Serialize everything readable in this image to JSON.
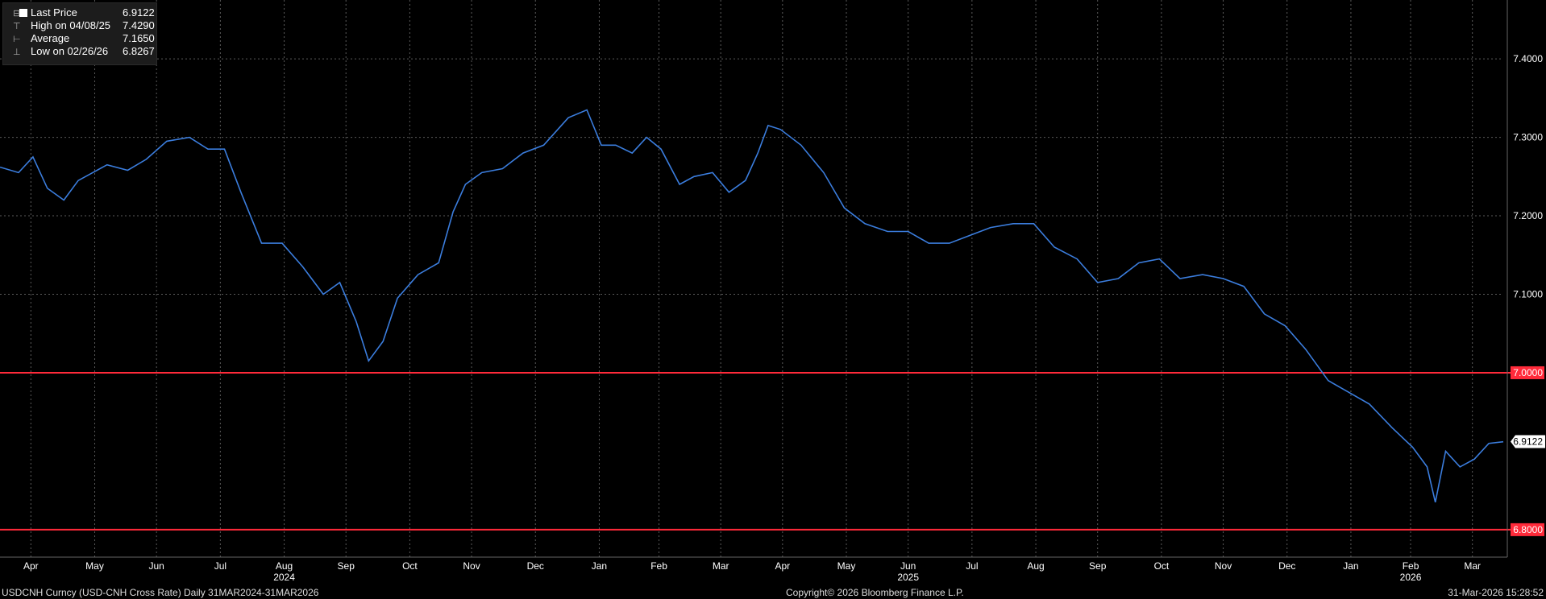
{
  "legend": {
    "items": [
      {
        "label": "Last Price",
        "value": "6.9122"
      },
      {
        "label": "High on 04/08/25",
        "value": "7.4290"
      },
      {
        "label": "Average",
        "value": "7.1650"
      },
      {
        "label": "Low on 02/26/26",
        "value": "6.8267"
      }
    ]
  },
  "footer": {
    "left": "USDCNH Curncy (USD-CNH Cross Rate) Daily 31MAR2024-31MAR2026",
    "center": "Copyright© 2026 Bloomberg Finance L.P.",
    "right": "31-Mar-2026 15:28:52"
  },
  "colors": {
    "background": "#000000",
    "series": "#3b7ddd",
    "reference_line": "#ff2a3a",
    "grid": "#5a5a5a",
    "text": "#ffffff"
  },
  "chart_data": {
    "type": "line",
    "ylim": [
      6.765,
      7.475
    ],
    "y_ticks": [
      6.8,
      7.0,
      7.1,
      7.2,
      7.3,
      7.4
    ],
    "y_tick_labels": [
      "6.8000",
      "7.0000",
      "7.1000",
      "7.2000",
      "7.3000",
      "7.4000"
    ],
    "highlighted_ticks": [
      "6.8000",
      "7.0000"
    ],
    "reference_lines": [
      7.0,
      6.8
    ],
    "last_price_label": "6.9122",
    "last_price": 6.9122,
    "x_range": [
      "2024-03-31",
      "2026-03-31"
    ],
    "month_labels": [
      {
        "date": "2024-04-15",
        "label": "Apr"
      },
      {
        "date": "2024-05-16",
        "label": "May"
      },
      {
        "date": "2024-06-15",
        "label": "Jun"
      },
      {
        "date": "2024-07-16",
        "label": "Jul"
      },
      {
        "date": "2024-08-16",
        "label": "Aug"
      },
      {
        "date": "2024-09-15",
        "label": "Sep"
      },
      {
        "date": "2024-10-16",
        "label": "Oct"
      },
      {
        "date": "2024-11-15",
        "label": "Nov"
      },
      {
        "date": "2024-12-16",
        "label": "Dec"
      },
      {
        "date": "2025-01-16",
        "label": "Jan"
      },
      {
        "date": "2025-02-14",
        "label": "Feb"
      },
      {
        "date": "2025-03-16",
        "label": "Mar"
      },
      {
        "date": "2025-04-15",
        "label": "Apr"
      },
      {
        "date": "2025-05-16",
        "label": "May"
      },
      {
        "date": "2025-06-15",
        "label": "Jun"
      },
      {
        "date": "2025-07-16",
        "label": "Jul"
      },
      {
        "date": "2025-08-16",
        "label": "Aug"
      },
      {
        "date": "2025-09-15",
        "label": "Sep"
      },
      {
        "date": "2025-10-16",
        "label": "Oct"
      },
      {
        "date": "2025-11-15",
        "label": "Nov"
      },
      {
        "date": "2025-12-16",
        "label": "Dec"
      },
      {
        "date": "2026-01-16",
        "label": "Jan"
      },
      {
        "date": "2026-02-14",
        "label": "Feb"
      },
      {
        "date": "2026-03-16",
        "label": "Mar"
      }
    ],
    "year_labels": [
      {
        "date": "2024-08-16",
        "label": "2024"
      },
      {
        "date": "2025-06-15",
        "label": "2025"
      },
      {
        "date": "2026-02-14",
        "label": "2026"
      }
    ],
    "grid": true,
    "series": [
      {
        "name": "Last Price",
        "x": [
          "2024-03-31",
          "2024-04-09",
          "2024-04-16",
          "2024-04-23",
          "2024-05-01",
          "2024-05-08",
          "2024-05-15",
          "2024-05-22",
          "2024-06-01",
          "2024-06-10",
          "2024-06-20",
          "2024-07-01",
          "2024-07-10",
          "2024-07-18",
          "2024-07-26",
          "2024-08-05",
          "2024-08-15",
          "2024-08-25",
          "2024-09-04",
          "2024-09-12",
          "2024-09-20",
          "2024-09-26",
          "2024-10-03",
          "2024-10-10",
          "2024-10-20",
          "2024-10-30",
          "2024-11-06",
          "2024-11-12",
          "2024-11-20",
          "2024-11-30",
          "2024-12-10",
          "2024-12-20",
          "2025-01-01",
          "2025-01-10",
          "2025-01-17",
          "2025-01-24",
          "2025-02-01",
          "2025-02-08",
          "2025-02-15",
          "2025-02-24",
          "2025-03-03",
          "2025-03-12",
          "2025-03-20",
          "2025-03-28",
          "2025-04-03",
          "2025-04-08",
          "2025-04-14",
          "2025-04-24",
          "2025-05-05",
          "2025-05-15",
          "2025-05-25",
          "2025-06-05",
          "2025-06-15",
          "2025-06-25",
          "2025-07-05",
          "2025-07-15",
          "2025-07-25",
          "2025-08-05",
          "2025-08-15",
          "2025-08-25",
          "2025-09-05",
          "2025-09-15",
          "2025-09-25",
          "2025-10-05",
          "2025-10-15",
          "2025-10-25",
          "2025-11-05",
          "2025-11-15",
          "2025-11-25",
          "2025-12-05",
          "2025-12-15",
          "2025-12-25",
          "2026-01-05",
          "2026-01-15",
          "2026-01-25",
          "2026-02-05",
          "2026-02-15",
          "2026-02-22",
          "2026-02-26",
          "2026-03-03",
          "2026-03-10",
          "2026-03-17",
          "2026-03-24",
          "2026-03-31"
        ],
        "values": [
          7.262,
          7.255,
          7.275,
          7.235,
          7.22,
          7.245,
          7.255,
          7.265,
          7.258,
          7.272,
          7.295,
          7.3,
          7.285,
          7.285,
          7.23,
          7.165,
          7.165,
          7.135,
          7.1,
          7.115,
          7.065,
          7.015,
          7.04,
          7.095,
          7.125,
          7.14,
          7.205,
          7.24,
          7.255,
          7.26,
          7.28,
          7.29,
          7.325,
          7.335,
          7.29,
          7.29,
          7.28,
          7.3,
          7.285,
          7.24,
          7.25,
          7.255,
          7.23,
          7.245,
          7.28,
          7.315,
          7.31,
          7.29,
          7.255,
          7.21,
          7.19,
          7.18,
          7.18,
          7.165,
          7.165,
          7.175,
          7.185,
          7.19,
          7.19,
          7.16,
          7.145,
          7.115,
          7.12,
          7.14,
          7.145,
          7.12,
          7.125,
          7.12,
          7.11,
          7.075,
          7.06,
          7.03,
          6.99,
          6.975,
          6.96,
          6.93,
          6.905,
          6.88,
          6.835,
          6.9,
          6.88,
          6.89,
          6.91,
          6.912
        ]
      }
    ]
  }
}
